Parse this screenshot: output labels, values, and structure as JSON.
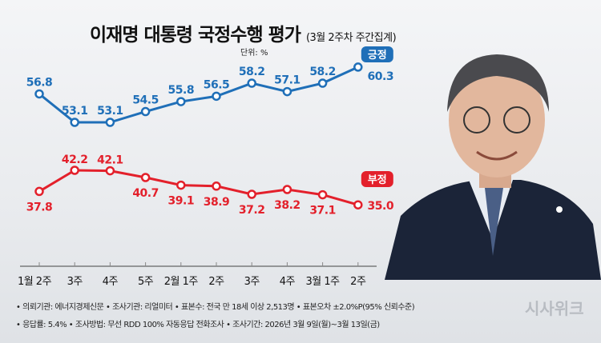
{
  "title": "이재명 대통령 국정수행 평가",
  "subtitle": "(3월 2주차 주간집계)",
  "unit": "단위: %",
  "chart_data": {
    "type": "line",
    "title": "이재명 대통령 국정수행 평가",
    "categories": [
      "1월 2주",
      "3주",
      "4주",
      "5주",
      "2월 1주",
      "2주",
      "3주",
      "4주",
      "3월 1주",
      "2주"
    ],
    "series": [
      {
        "name": "긍정",
        "color": "#1f6fb8",
        "values": [
          56.8,
          53.1,
          53.1,
          54.5,
          55.8,
          56.5,
          58.2,
          57.1,
          58.2,
          60.3
        ]
      },
      {
        "name": "부정",
        "color": "#e3202b",
        "values": [
          37.8,
          42.2,
          42.1,
          40.7,
          39.1,
          38.9,
          37.2,
          38.2,
          37.1,
          35.0
        ]
      }
    ],
    "value_labels": {
      "positive": [
        "56.8",
        "53.1",
        "53.1",
        "54.5",
        "55.8",
        "56.5",
        "58.2",
        "57.1",
        "58.2",
        "60.3"
      ],
      "negative": [
        "37.8",
        "42.2",
        "42.1",
        "40.7",
        "39.1",
        "38.9",
        "37.2",
        "38.2",
        "37.1",
        "35.0"
      ]
    },
    "legend": "labels-at-line-ends",
    "grid": false
  },
  "footer": {
    "line1": "• 의뢰기관: 에너지경제신문 • 조사기관: 리얼미터 • 표본수: 전국 만 18세 이상 2,513명 • 표본오차 ±2.0%P(95% 신뢰수준)",
    "line2": "• 응답률: 5.4% • 조사방법: 무선 RDD 100% 자동응답 전화조사 • 조사기간: 2026년 3월 9일(월)~3월 13일(금)"
  },
  "logo": "시사위크"
}
